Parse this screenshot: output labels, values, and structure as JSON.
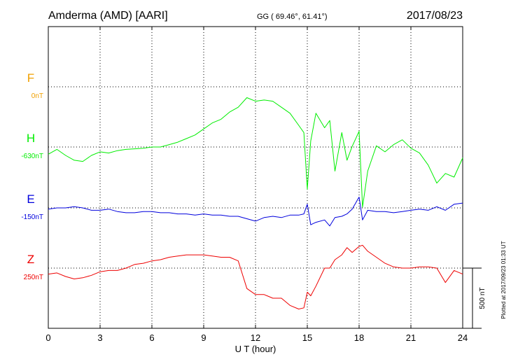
{
  "header": {
    "station": "Amderma (AMD)  [AARI]",
    "coords": "GG ( 69.46°,  61.41°)",
    "date": "2017/08/23"
  },
  "footer": {
    "plotted_note": "Plotted at 2017/09/23 01:33 UT"
  },
  "chart_data": {
    "type": "line",
    "xlabel": "U T (hour)",
    "xlim": [
      0,
      24
    ],
    "xticks": [
      0,
      3,
      6,
      9,
      12,
      15,
      18,
      21,
      24
    ],
    "scale_bar_label": "500 nT",
    "scale_bar_nT": 500,
    "grid": true,
    "series": [
      {
        "name": "F",
        "offset_label": "0nT",
        "color": "#f0a000",
        "baseline_offset_nT": 0,
        "x": [],
        "y": []
      },
      {
        "name": "H",
        "offset_label": "-630nT",
        "color": "#00ee00",
        "baseline_offset_nT": -630,
        "x": [
          0,
          0.5,
          1,
          1.5,
          2,
          2.5,
          3,
          3.5,
          4,
          4.5,
          5,
          5.5,
          6,
          6.5,
          7,
          7.5,
          8,
          8.5,
          9,
          9.5,
          10,
          10.5,
          11,
          11.5,
          12,
          12.5,
          13,
          13.5,
          14,
          14.5,
          14.8,
          15,
          15.2,
          15.5,
          16,
          16.3,
          16.6,
          17,
          17.3,
          17.6,
          18,
          18.2,
          18.5,
          19,
          19.5,
          20,
          20.5,
          21,
          21.5,
          22,
          22.5,
          23,
          23.5,
          24
        ],
        "y": [
          -60,
          -20,
          -70,
          -110,
          -120,
          -70,
          -40,
          -50,
          -30,
          -20,
          -15,
          -10,
          0,
          0,
          20,
          40,
          70,
          100,
          150,
          200,
          230,
          290,
          330,
          410,
          380,
          390,
          380,
          330,
          280,
          180,
          120,
          -350,
          50,
          280,
          160,
          220,
          -200,
          120,
          -110,
          5,
          130,
          -500,
          -200,
          10,
          -40,
          20,
          60,
          -10,
          -50,
          -150,
          -300,
          -220,
          -250,
          -90
        ]
      },
      {
        "name": "E",
        "offset_label": "-150nT",
        "color": "#0000dd",
        "baseline_offset_nT": -150,
        "x": [
          0,
          0.5,
          1,
          1.5,
          2,
          2.5,
          3,
          3.5,
          4,
          4.5,
          5,
          5.5,
          6,
          6.5,
          7,
          7.5,
          8,
          8.5,
          9,
          9.5,
          10,
          10.5,
          11,
          11.5,
          12,
          12.5,
          13,
          13.5,
          14,
          14.5,
          14.8,
          15,
          15.2,
          15.5,
          16,
          16.3,
          16.6,
          17,
          17.3,
          17.6,
          18,
          18.2,
          18.5,
          19,
          19.5,
          20,
          20.5,
          21,
          21.5,
          22,
          22.5,
          23,
          23.5,
          24
        ],
        "y": [
          -10,
          0,
          0,
          10,
          0,
          -20,
          -20,
          -10,
          -30,
          -40,
          -40,
          -30,
          -30,
          -40,
          -40,
          -50,
          -50,
          -60,
          -50,
          -60,
          -60,
          -70,
          -70,
          -90,
          -110,
          -80,
          -70,
          -80,
          -60,
          -60,
          -50,
          30,
          -140,
          -120,
          -100,
          -150,
          -80,
          -70,
          -50,
          -10,
          90,
          -100,
          -20,
          -30,
          -30,
          -40,
          -30,
          -20,
          -10,
          -20,
          10,
          -20,
          30,
          40
        ]
      },
      {
        "name": "Z",
        "offset_label": "250nT",
        "color": "#ee0000",
        "baseline_offset_nT": 250,
        "x": [
          0,
          0.5,
          1,
          1.5,
          2,
          2.5,
          3,
          3.5,
          4,
          4.5,
          5,
          5.5,
          6,
          6.5,
          7,
          7.5,
          8,
          8.5,
          9,
          9.5,
          10,
          10.5,
          11,
          11.5,
          12,
          12.5,
          13,
          13.5,
          14,
          14.5,
          14.8,
          15,
          15.2,
          15.5,
          16,
          16.3,
          16.6,
          17,
          17.3,
          17.6,
          18,
          18.2,
          18.5,
          19,
          19.5,
          20,
          20.5,
          21,
          21.5,
          22,
          22.5,
          23,
          23.5,
          24
        ],
        "y": [
          -50,
          -40,
          -70,
          -90,
          -80,
          -60,
          -30,
          -20,
          -20,
          0,
          30,
          40,
          60,
          70,
          90,
          100,
          110,
          110,
          110,
          100,
          90,
          90,
          60,
          -170,
          -220,
          -220,
          -250,
          -250,
          -310,
          -340,
          -330,
          -200,
          -230,
          -150,
          0,
          0,
          70,
          110,
          170,
          130,
          180,
          190,
          140,
          90,
          40,
          10,
          0,
          0,
          10,
          10,
          0,
          -120,
          -20,
          -50
        ]
      }
    ]
  }
}
